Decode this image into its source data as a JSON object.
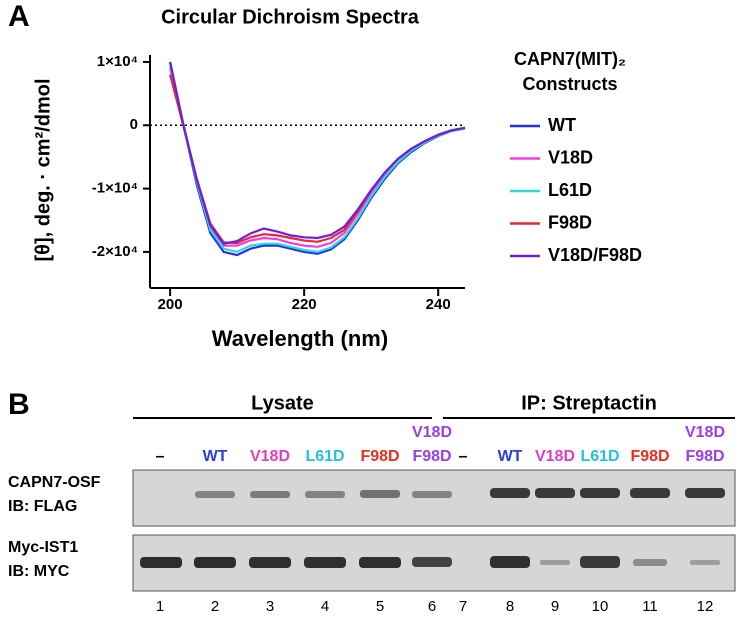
{
  "panel_labels": [
    "A",
    "B"
  ],
  "chart_data": {
    "type": "line",
    "title": "Circular Dichroism Spectra",
    "x_label": "Wavelength (nm)",
    "y_label": "[θ], deg. · cm²/dmol",
    "legend_title": [
      "CAPN7(MIT)₂",
      "Constructs"
    ],
    "zero_line": true,
    "x": [
      200,
      202,
      204,
      206,
      208,
      210,
      212,
      214,
      216,
      218,
      220,
      222,
      224,
      226,
      228,
      230,
      232,
      234,
      236,
      238,
      240,
      242,
      244
    ],
    "xlim": [
      197,
      244
    ],
    "xticks": [
      200,
      220,
      240
    ],
    "ylim": [
      -25700,
      11100
    ],
    "yticks": [
      {
        "value": 10000,
        "label": "1×10⁴"
      },
      0,
      {
        "value": -10000,
        "label": "-1×10⁴"
      },
      {
        "value": -20000,
        "label": "-2×10⁴"
      }
    ],
    "series": [
      {
        "name": "WT",
        "color": "#1f33e0",
        "values": [
          10000,
          0,
          -9500,
          -17000,
          -20000,
          -20500,
          -19500,
          -19000,
          -19000,
          -19500,
          -20000,
          -20300,
          -19600,
          -18000,
          -15000,
          -11500,
          -8500,
          -6000,
          -4200,
          -2800,
          -1700,
          -900,
          -500
        ]
      },
      {
        "name": "V18D",
        "color": "#f53ee0",
        "values": [
          9000,
          0,
          -8800,
          -16000,
          -19000,
          -19000,
          -18200,
          -17800,
          -18000,
          -18600,
          -19000,
          -19200,
          -18600,
          -17000,
          -14000,
          -10700,
          -7900,
          -5600,
          -3900,
          -2600,
          -1600,
          -900,
          -500
        ]
      },
      {
        "name": "L61D",
        "color": "#35d6dc",
        "values": [
          9500,
          0,
          -9000,
          -16500,
          -19500,
          -20000,
          -19000,
          -18700,
          -18700,
          -19200,
          -19700,
          -20000,
          -19300,
          -17700,
          -14700,
          -11200,
          -8200,
          -5800,
          -4000,
          -2700,
          -1600,
          -900,
          -500
        ]
      },
      {
        "name": "F98D",
        "color": "#e82838",
        "values": [
          8000,
          -200,
          -8500,
          -15500,
          -18500,
          -18600,
          -17700,
          -17200,
          -17400,
          -17800,
          -18200,
          -18400,
          -17800,
          -16500,
          -13600,
          -10300,
          -7500,
          -5300,
          -3700,
          -2500,
          -1500,
          -800,
          -400
        ]
      },
      {
        "name": "V18D/F98D",
        "color": "#6a22d8",
        "values": [
          10000,
          0,
          -8700,
          -15800,
          -18700,
          -18300,
          -17100,
          -16300,
          -16800,
          -17400,
          -17700,
          -17800,
          -17300,
          -16000,
          -13300,
          -10200,
          -7500,
          -5300,
          -3700,
          -2500,
          -1500,
          -800,
          -400
        ]
      }
    ]
  },
  "blot": {
    "groups": [
      {
        "title": "Lysate",
        "lanes": [
          {
            "label": [
              "–"
            ],
            "color": "#000000"
          },
          {
            "label": [
              "WT"
            ],
            "color": "#2a3fe0"
          },
          {
            "label": [
              "V18D"
            ],
            "color": "#e040c0"
          },
          {
            "label": [
              "L61D"
            ],
            "color": "#20c4d4"
          },
          {
            "label": [
              "F98D"
            ],
            "color": "#e83020"
          },
          {
            "label": [
              "V18D",
              "F98D"
            ],
            "color": "#9a40e0"
          }
        ]
      },
      {
        "title": "IP: Streptactin",
        "lanes": [
          {
            "label": [
              "–"
            ],
            "color": "#000000"
          },
          {
            "label": [
              "WT"
            ],
            "color": "#2a3fe0"
          },
          {
            "label": [
              "V18D"
            ],
            "color": "#e040c0"
          },
          {
            "label": [
              "L61D"
            ],
            "color": "#20c4d4"
          },
          {
            "label": [
              "F98D"
            ],
            "color": "#e83020"
          },
          {
            "label": [
              "V18D",
              "F98D"
            ],
            "color": "#9a40e0"
          }
        ]
      }
    ],
    "rows": [
      {
        "label": [
          "CAPN7-OSF",
          "IB: FLAG"
        ]
      },
      {
        "label": [
          "Myc-IST1",
          "IB: MYC"
        ]
      }
    ],
    "lane_numbers": [
      1,
      2,
      3,
      4,
      5,
      6,
      7,
      8,
      9,
      10,
      11,
      12
    ]
  }
}
